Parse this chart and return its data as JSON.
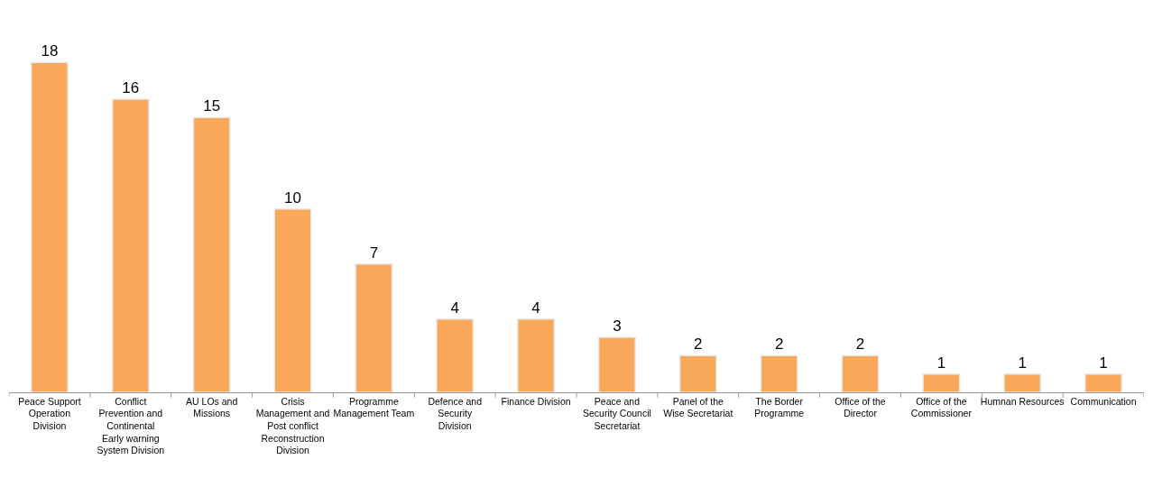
{
  "chart_data": {
    "type": "bar",
    "categories": [
      "Peace Support Operation Division",
      "Conflict Prevention and Continental Early warning System Division",
      "AU LOs and Missions",
      "Crisis Management and Post conflict Reconstruction Division",
      "Programme Management Team",
      "Defence and Security Division",
      "Finance Division",
      "Peace and Security Council Secretariat",
      "Panel of the Wise Secretariat",
      "The Border Programme",
      "Office of the Director",
      "Office of the Commissioner",
      "Humnan Resources",
      "Communication"
    ],
    "values": [
      18,
      16,
      15,
      10,
      7,
      4,
      4,
      3,
      2,
      2,
      2,
      1,
      1,
      1
    ],
    "color": "#f9a85a",
    "data_labels": true
  }
}
